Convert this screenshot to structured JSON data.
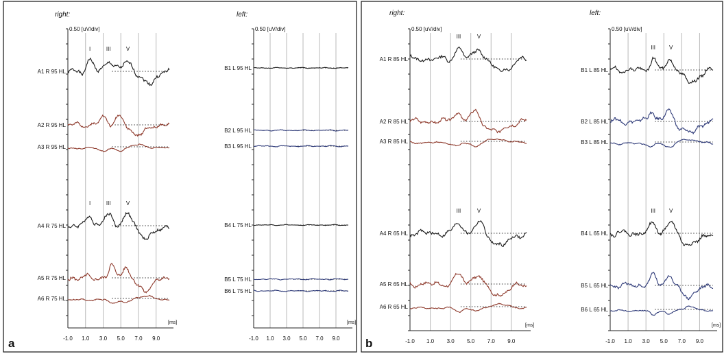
{
  "colors": {
    "black": "#1a1a1a",
    "red": "#8e3a2c",
    "blue": "#2e3a78",
    "grid": "#b9b9b9",
    "dotted": "#333333",
    "frame": "#222222"
  },
  "chart_data": [
    {
      "type": "line",
      "panel": "a",
      "side": "right:",
      "scale_label": "0.50 [uV/div]",
      "unit_label": "[ms]",
      "x_ticks": [
        "-1.0",
        "1.0",
        "3.0",
        "5.0",
        "7.0",
        "9.0"
      ],
      "xlim": [
        -1.0,
        10.5
      ],
      "grid_x": [
        1.0,
        3.0,
        5.0,
        7.0,
        9.0
      ],
      "wave_labels": [
        {
          "text": "I",
          "x": 1.5,
          "trace": 0
        },
        {
          "text": "III",
          "x": 3.6,
          "trace": 0
        },
        {
          "text": "V",
          "x": 5.8,
          "trace": 0
        },
        {
          "text": "I",
          "x": 1.5,
          "trace": 3
        },
        {
          "text": "III",
          "x": 3.6,
          "trace": 3
        },
        {
          "text": "V",
          "x": 5.8,
          "trace": 3
        }
      ],
      "traces": [
        {
          "label": "A1 R 95 HL",
          "color": "black",
          "ampl": 1.0,
          "peaks": [
            1.5,
            3.6,
            5.8
          ],
          "seed": 1
        },
        {
          "label": "A2 R 95 HL",
          "color": "red",
          "ampl": 0.8,
          "peaks": [
            3.0,
            4.8
          ],
          "seed": 2
        },
        {
          "label": "A3 R 95 HL",
          "color": "red",
          "ampl": 0.8,
          "peaks": [
            3.0,
            4.8
          ],
          "seed": 3,
          "invert": true
        },
        {
          "label": "A4 R 75 HL",
          "color": "black",
          "ampl": 1.0,
          "peaks": [
            1.5,
            3.6,
            5.8
          ],
          "seed": 4
        },
        {
          "label": "A5 R 75 HL",
          "color": "red",
          "ampl": 1.0,
          "peaks": [
            4.0,
            5.5
          ],
          "seed": 5
        },
        {
          "label": "A6 R 75 HL",
          "color": "red",
          "ampl": 0.9,
          "peaks": [
            4.0,
            5.5
          ],
          "seed": 6,
          "invert": true
        }
      ]
    },
    {
      "type": "line",
      "panel": "",
      "side": "left:",
      "scale_label": "0.50 [uV/div]",
      "unit_label": "[ms]",
      "x_ticks": [
        "-1.0",
        "1.0",
        "3.0",
        "5.0",
        "7.0",
        "9.0"
      ],
      "xlim": [
        -1.0,
        10.5
      ],
      "grid_x": [
        1.0,
        3.0,
        5.0,
        7.0,
        9.0
      ],
      "wave_labels": [],
      "traces": [
        {
          "label": "B1 L 95 HL",
          "color": "black",
          "ampl": 0.15,
          "peaks": [],
          "seed": 7
        },
        {
          "label": "B2 L 95 HL",
          "color": "blue",
          "ampl": 0.2,
          "peaks": [],
          "seed": 8
        },
        {
          "label": "B3 L 95 HL",
          "color": "blue",
          "ampl": 0.2,
          "peaks": [],
          "seed": 9
        },
        {
          "label": "B4 L 75 HL",
          "color": "black",
          "ampl": 0.15,
          "peaks": [],
          "seed": 10
        },
        {
          "label": "B5 L 75 HL",
          "color": "blue",
          "ampl": 0.2,
          "peaks": [],
          "seed": 11
        },
        {
          "label": "B6 L 75 HL",
          "color": "blue",
          "ampl": 0.2,
          "peaks": [],
          "seed": 12
        }
      ]
    },
    {
      "type": "line",
      "panel": "b",
      "side": "right:",
      "scale_label": "0.50 [uV/div]",
      "unit_label": "[ms]",
      "x_ticks": [
        "-1.0",
        "1.0",
        "3.0",
        "5.0",
        "7.0",
        "9.0"
      ],
      "xlim": [
        -1.0,
        10.5
      ],
      "grid_x": [
        1.0,
        3.0,
        5.0,
        7.0,
        9.0
      ],
      "wave_labels": [
        {
          "text": "III",
          "x": 3.8,
          "trace": 0
        },
        {
          "text": "V",
          "x": 5.8,
          "trace": 0
        },
        {
          "text": "III",
          "x": 3.8,
          "trace": 3
        },
        {
          "text": "V",
          "x": 5.8,
          "trace": 3
        }
      ],
      "traces": [
        {
          "label": "A1 R 85 HL",
          "color": "black",
          "ampl": 1.0,
          "peaks": [
            3.8,
            5.8
          ],
          "seed": 13
        },
        {
          "label": "A2 R 85 HL",
          "color": "red",
          "ampl": 0.9,
          "peaks": [
            3.6,
            5.4
          ],
          "seed": 14
        },
        {
          "label": "A3 R 85 HL",
          "color": "red",
          "ampl": 0.9,
          "peaks": [
            3.6,
            5.4
          ],
          "seed": 15,
          "invert": true
        },
        {
          "label": "A4 R 65 HL",
          "color": "black",
          "ampl": 1.0,
          "peaks": [
            3.8,
            5.8
          ],
          "seed": 16
        },
        {
          "label": "A5 R 65 HL",
          "color": "red",
          "ampl": 0.9,
          "peaks": [
            3.8,
            5.6
          ],
          "seed": 17
        },
        {
          "label": "A6 R 65 HL",
          "color": "red",
          "ampl": 0.9,
          "peaks": [
            3.8,
            5.6
          ],
          "seed": 18,
          "invert": true
        }
      ]
    },
    {
      "type": "line",
      "panel": "",
      "side": "left:",
      "scale_label": "0.50 [uV/div]",
      "unit_label": "[ms]",
      "x_ticks": [
        "-1.0",
        "1.0",
        "3.0",
        "5.0",
        "7.0",
        "9.0"
      ],
      "xlim": [
        -1.0,
        10.5
      ],
      "grid_x": [
        1.0,
        3.0,
        5.0,
        7.0,
        9.0
      ],
      "wave_labels": [
        {
          "text": "III",
          "x": 3.8,
          "trace": 0
        },
        {
          "text": "V",
          "x": 5.8,
          "trace": 0
        },
        {
          "text": "III",
          "x": 3.8,
          "trace": 3
        },
        {
          "text": "V",
          "x": 5.8,
          "trace": 3
        }
      ],
      "traces": [
        {
          "label": "B1 L 85 HL",
          "color": "black",
          "ampl": 1.0,
          "peaks": [
            3.8,
            5.8
          ],
          "seed": 19
        },
        {
          "label": "B2 L 85 HL",
          "color": "blue",
          "ampl": 1.0,
          "peaks": [
            3.6,
            5.6
          ],
          "seed": 20
        },
        {
          "label": "B3 L 85 HL",
          "color": "blue",
          "ampl": 1.0,
          "peaks": [
            3.6,
            5.6
          ],
          "seed": 21,
          "invert": true
        },
        {
          "label": "B4 L 65 HL",
          "color": "black",
          "ampl": 1.0,
          "peaks": [
            3.8,
            5.8
          ],
          "seed": 22
        },
        {
          "label": "B5 L 65 HL",
          "color": "blue",
          "ampl": 0.9,
          "peaks": [
            3.8,
            5.6
          ],
          "seed": 23
        },
        {
          "label": "B6 L 65 HL",
          "color": "blue",
          "ampl": 0.9,
          "peaks": [
            3.8,
            5.6
          ],
          "seed": 24,
          "invert": true
        }
      ]
    }
  ]
}
